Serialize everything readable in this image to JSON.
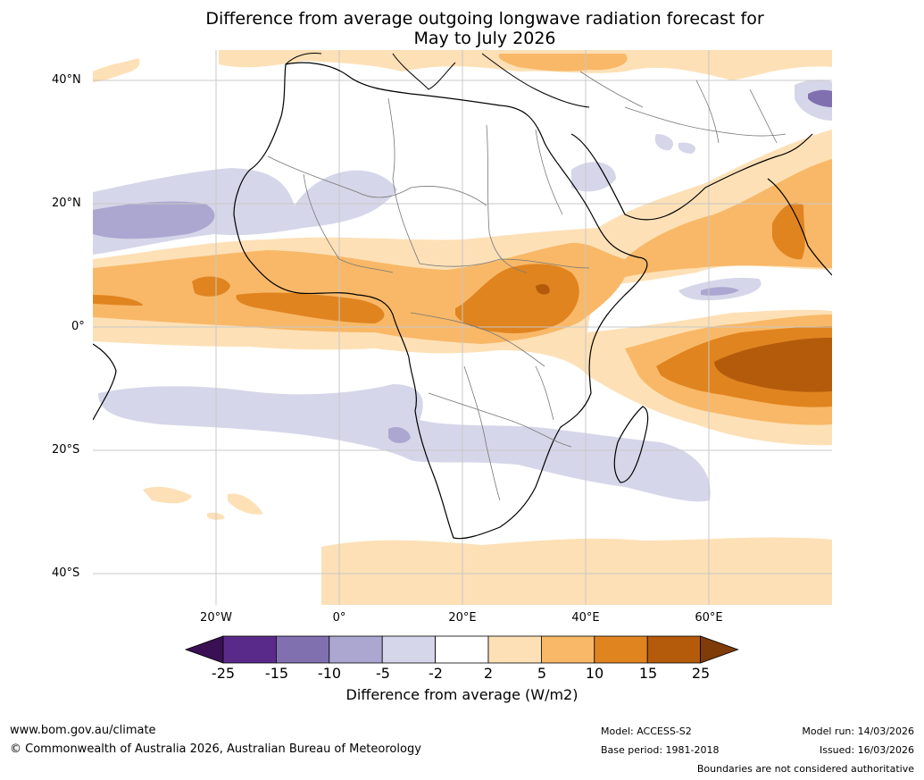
{
  "title": {
    "line1": "Difference from average outgoing longwave radiation forecast for",
    "line2": "May to July 2026"
  },
  "map": {
    "lat_labels": [
      "40°N",
      "20°N",
      "0°",
      "20°S",
      "40°S"
    ],
    "lon_labels": [
      "20°W",
      "0°",
      "20°E",
      "40°E",
      "60°E"
    ],
    "lat_values": [
      40,
      20,
      0,
      -20,
      -40
    ],
    "lon_values": [
      -20,
      0,
      20,
      40,
      60
    ],
    "extent": {
      "lon_min": -40,
      "lon_max": 80,
      "lat_min": -45,
      "lat_max": 45
    }
  },
  "colorbar": {
    "ticks": [
      "-25",
      "-15",
      "-10",
      "-5",
      "-2",
      "2",
      "5",
      "10",
      "15",
      "25"
    ],
    "colors": [
      "#3b0f53",
      "#5a2a8a",
      "#8070b0",
      "#aca7d0",
      "#d6d6ea",
      "#ffffff",
      "#fde0b6",
      "#f8b867",
      "#e08420",
      "#b45b0b",
      "#7f3c08"
    ],
    "label": "Difference from average (W/m2)"
  },
  "footer": {
    "website": "www.bom.gov.au/climate",
    "copyright": "© Commonwealth of Australia 2026, Australian Bureau of Meteorology",
    "model": "Model: ACCESS-S2",
    "base_period": "Base period: 1981-2018",
    "model_run": "Model run: 14/03/2026",
    "issued": "Issued: 16/03/2026",
    "disclaimer": "Boundaries are not considered authoritative"
  }
}
